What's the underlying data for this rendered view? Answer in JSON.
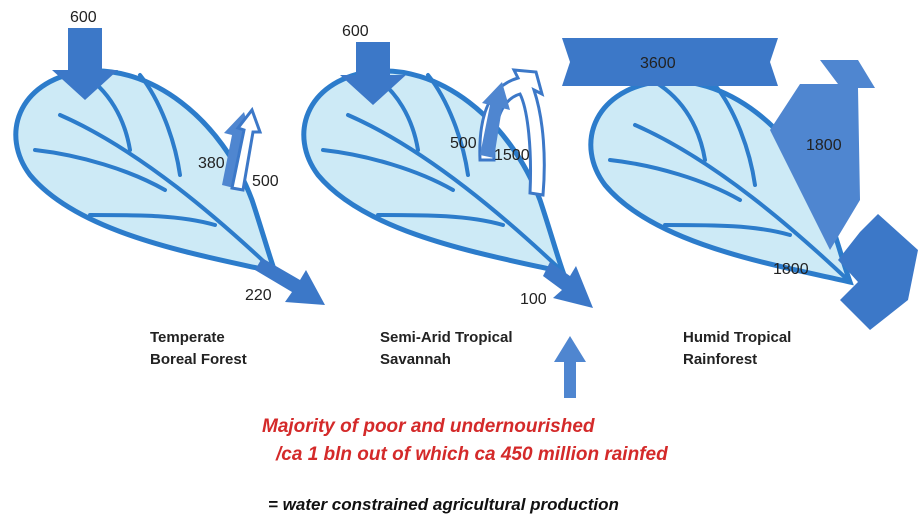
{
  "panels": [
    {
      "label": [
        "Temperate",
        "Boreal Forest"
      ],
      "flows": {
        "rain": 600,
        "evaporation": 380,
        "transpiration": 500,
        "runoff": 220
      }
    },
    {
      "label": [
        "Semi-Arid Tropical",
        "Savannah"
      ],
      "flows": {
        "rain": 600,
        "evaporation": 500,
        "transpiration": 1500,
        "runoff": 100
      }
    },
    {
      "label": [
        "Humid Tropical",
        "Rainforest"
      ],
      "flows": {
        "rain": 3600,
        "evaporation": 1800,
        "runoff": 1800
      }
    }
  ],
  "callout": {
    "lines": [
      "Majority of poor and undernourished",
      "/ca 1 bln out of which ca 450 million rainfed"
    ],
    "conclusion": "= water constrained agricultural production"
  }
}
